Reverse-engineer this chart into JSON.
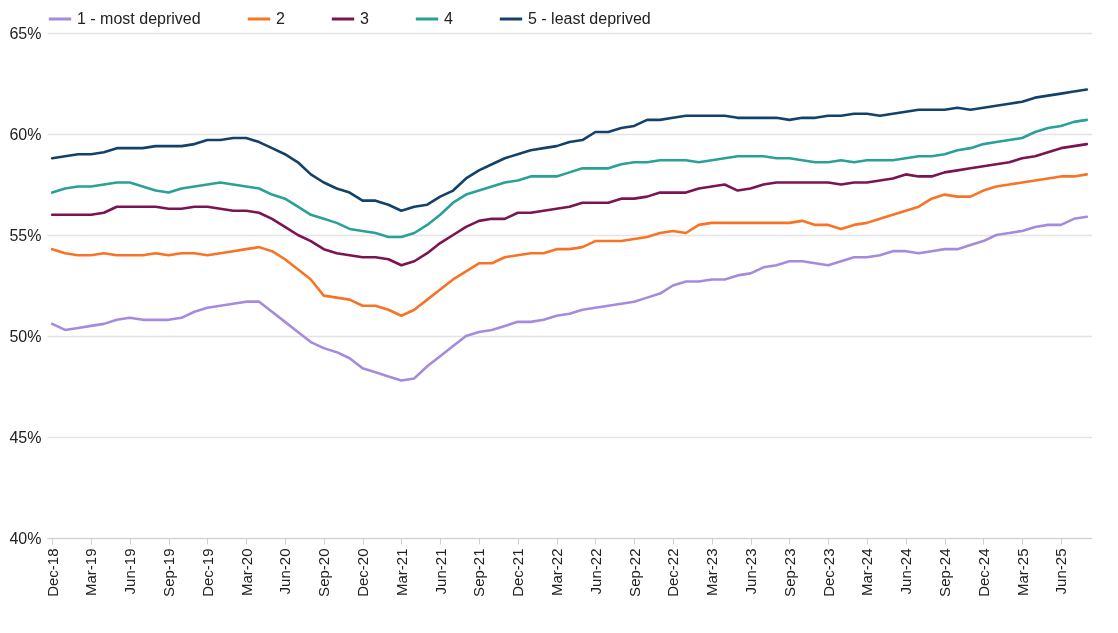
{
  "chart_data": {
    "type": "line",
    "categories": [
      "Dec-18",
      null,
      null,
      "Mar-19",
      null,
      null,
      "Jun-19",
      null,
      null,
      "Sep-19",
      null,
      null,
      "Dec-19",
      null,
      null,
      "Mar-20",
      null,
      null,
      "Jun-20",
      null,
      null,
      "Sep-20",
      null,
      null,
      "Dec-20",
      null,
      null,
      "Mar-21",
      null,
      null,
      "Jun-21",
      null,
      null,
      "Sep-21",
      null,
      null,
      "Dec-21",
      null,
      null,
      "Mar-22",
      null,
      null,
      "Jun-22",
      null,
      null,
      "Sep-22",
      null,
      null,
      "Dec-22",
      null,
      null,
      "Mar-23",
      null,
      null,
      "Jun-23",
      null,
      null,
      "Sep-23",
      null,
      null,
      "Dec-23",
      null,
      null,
      "Mar-24",
      null,
      null,
      "Jun-24",
      null,
      null,
      "Sep-24",
      null,
      null,
      "Dec-24",
      null,
      null,
      "Mar-25",
      null,
      null,
      "Jun-25",
      null,
      null
    ],
    "series": [
      {
        "name": "1 - most deprived",
        "color": "#a58bdc",
        "values": [
          50.6,
          50.3,
          50.4,
          50.5,
          50.6,
          50.8,
          50.9,
          50.8,
          50.8,
          50.8,
          50.9,
          51.2,
          51.4,
          51.5,
          51.6,
          51.7,
          51.7,
          51.2,
          50.7,
          50.2,
          49.7,
          49.4,
          49.2,
          48.9,
          48.4,
          48.2,
          48.0,
          47.8,
          47.9,
          48.5,
          49.0,
          49.5,
          50.0,
          50.2,
          50.3,
          50.5,
          50.7,
          50.7,
          50.8,
          51.0,
          51.1,
          51.3,
          51.4,
          51.5,
          51.6,
          51.7,
          51.9,
          52.1,
          52.5,
          52.7,
          52.7,
          52.8,
          52.8,
          53.0,
          53.1,
          53.4,
          53.5,
          53.7,
          53.7,
          53.6,
          53.5,
          53.7,
          53.9,
          53.9,
          54.0,
          54.2,
          54.2,
          54.1,
          54.2,
          54.3,
          54.3,
          54.5,
          54.7,
          55.0,
          55.1,
          55.2,
          55.4,
          55.5,
          55.5,
          55.8,
          55.9
        ]
      },
      {
        "name": "2",
        "color": "#f97325",
        "values": [
          54.3,
          54.1,
          54.0,
          54.0,
          54.1,
          54.0,
          54.0,
          54.0,
          54.1,
          54.0,
          54.1,
          54.1,
          54.0,
          54.1,
          54.2,
          54.3,
          54.4,
          54.2,
          53.8,
          53.3,
          52.8,
          52.0,
          51.9,
          51.8,
          51.5,
          51.5,
          51.3,
          51.0,
          51.3,
          51.8,
          52.3,
          52.8,
          53.2,
          53.6,
          53.6,
          53.9,
          54.0,
          54.1,
          54.1,
          54.3,
          54.3,
          54.4,
          54.7,
          54.7,
          54.7,
          54.8,
          54.9,
          55.1,
          55.2,
          55.1,
          55.5,
          55.6,
          55.6,
          55.6,
          55.6,
          55.6,
          55.6,
          55.6,
          55.7,
          55.5,
          55.5,
          55.3,
          55.5,
          55.6,
          55.8,
          56.0,
          56.2,
          56.4,
          56.8,
          57.0,
          56.9,
          56.9,
          57.2,
          57.4,
          57.5,
          57.6,
          57.7,
          57.8,
          57.9,
          57.9,
          58.0
        ]
      },
      {
        "name": "3",
        "color": "#7b1450",
        "values": [
          56.0,
          56.0,
          56.0,
          56.0,
          56.1,
          56.4,
          56.4,
          56.4,
          56.4,
          56.3,
          56.3,
          56.4,
          56.4,
          56.3,
          56.2,
          56.2,
          56.1,
          55.8,
          55.4,
          55.0,
          54.7,
          54.3,
          54.1,
          54.0,
          53.9,
          53.9,
          53.8,
          53.5,
          53.7,
          54.1,
          54.6,
          55.0,
          55.4,
          55.7,
          55.8,
          55.8,
          56.1,
          56.1,
          56.2,
          56.3,
          56.4,
          56.6,
          56.6,
          56.6,
          56.8,
          56.8,
          56.9,
          57.1,
          57.1,
          57.1,
          57.3,
          57.4,
          57.5,
          57.2,
          57.3,
          57.5,
          57.6,
          57.6,
          57.6,
          57.6,
          57.6,
          57.5,
          57.6,
          57.6,
          57.7,
          57.8,
          58.0,
          57.9,
          57.9,
          58.1,
          58.2,
          58.3,
          58.4,
          58.5,
          58.6,
          58.8,
          58.9,
          59.1,
          59.3,
          59.4,
          59.5
        ]
      },
      {
        "name": "4",
        "color": "#2aa198",
        "values": [
          57.1,
          57.3,
          57.4,
          57.4,
          57.5,
          57.6,
          57.6,
          57.4,
          57.2,
          57.1,
          57.3,
          57.4,
          57.5,
          57.6,
          57.5,
          57.4,
          57.3,
          57.0,
          56.8,
          56.4,
          56.0,
          55.8,
          55.6,
          55.3,
          55.2,
          55.1,
          54.9,
          54.9,
          55.1,
          55.5,
          56.0,
          56.6,
          57.0,
          57.2,
          57.4,
          57.6,
          57.7,
          57.9,
          57.9,
          57.9,
          58.1,
          58.3,
          58.3,
          58.3,
          58.5,
          58.6,
          58.6,
          58.7,
          58.7,
          58.7,
          58.6,
          58.7,
          58.8,
          58.9,
          58.9,
          58.9,
          58.8,
          58.8,
          58.7,
          58.6,
          58.6,
          58.7,
          58.6,
          58.7,
          58.7,
          58.7,
          58.8,
          58.9,
          58.9,
          59.0,
          59.2,
          59.3,
          59.5,
          59.6,
          59.7,
          59.8,
          60.1,
          60.3,
          60.4,
          60.6,
          60.7
        ]
      },
      {
        "name": "5 - least deprived",
        "color": "#12426b",
        "values": [
          58.8,
          58.9,
          59.0,
          59.0,
          59.1,
          59.3,
          59.3,
          59.3,
          59.4,
          59.4,
          59.4,
          59.5,
          59.7,
          59.7,
          59.8,
          59.8,
          59.6,
          59.3,
          59.0,
          58.6,
          58.0,
          57.6,
          57.3,
          57.1,
          56.7,
          56.7,
          56.5,
          56.2,
          56.4,
          56.5,
          56.9,
          57.2,
          57.8,
          58.2,
          58.5,
          58.8,
          59.0,
          59.2,
          59.3,
          59.4,
          59.6,
          59.7,
          60.1,
          60.1,
          60.3,
          60.4,
          60.7,
          60.7,
          60.8,
          60.9,
          60.9,
          60.9,
          60.9,
          60.8,
          60.8,
          60.8,
          60.8,
          60.7,
          60.8,
          60.8,
          60.9,
          60.9,
          61.0,
          61.0,
          60.9,
          61.0,
          61.1,
          61.2,
          61.2,
          61.2,
          61.3,
          61.2,
          61.3,
          61.4,
          61.5,
          61.6,
          61.8,
          61.9,
          62.0,
          62.1,
          62.2
        ]
      }
    ],
    "ylim": [
      40,
      65
    ],
    "yticks": [
      {
        "value": 40,
        "label": "40%"
      },
      {
        "value": 45,
        "label": "45%"
      },
      {
        "value": 50,
        "label": "50%"
      },
      {
        "value": 55,
        "label": "55%"
      },
      {
        "value": 60,
        "label": "60%"
      },
      {
        "value": 65,
        "label": "65%"
      }
    ],
    "grid": "y",
    "legend": "top",
    "marker": "none",
    "line_style": "solid"
  }
}
